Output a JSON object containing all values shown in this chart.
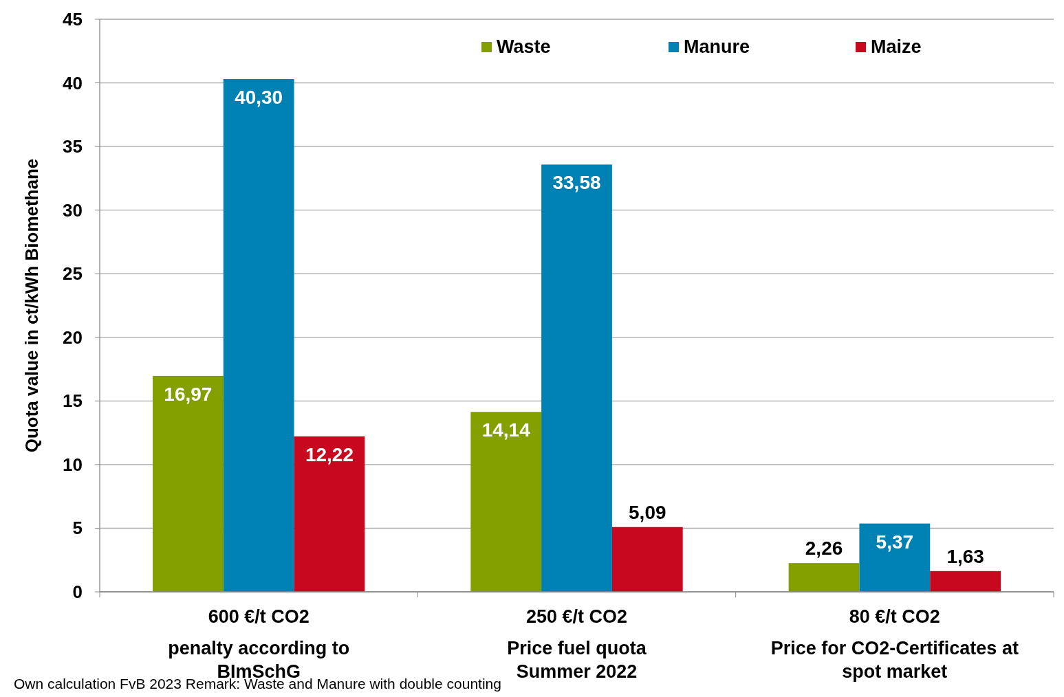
{
  "chart_data": {
    "type": "bar",
    "ylabel": "Quota value in ct/kWh Biomethane",
    "categories": [
      "600 €/t CO2\npenalty according to\nBImSchG",
      "250 €/t CO2\nPrice fuel quota\nSummer 2022",
      "80 €/t CO2\nPrice for CO2-Certificates at\nspot market"
    ],
    "series": [
      {
        "name": "Waste",
        "color": "#84a000",
        "values": [
          16.97,
          14.14,
          2.26
        ],
        "value_labels": [
          "16,97",
          "14,14",
          "2,26"
        ]
      },
      {
        "name": "Manure",
        "color": "#0081b4",
        "values": [
          40.3,
          33.58,
          5.37
        ],
        "value_labels": [
          "40,30",
          "33,58",
          "5,37"
        ]
      },
      {
        "name": "Maize",
        "color": "#c8081f",
        "values": [
          12.22,
          5.09,
          1.63
        ],
        "value_labels": [
          "12,22",
          "5,09",
          "1,63"
        ]
      }
    ],
    "ylim": [
      0,
      45
    ],
    "yticks": [
      0,
      5,
      10,
      15,
      20,
      25,
      30,
      35,
      40,
      45
    ],
    "grid": "y",
    "legend": "top right",
    "annotations": [
      "Own calculation FvB 2023 Remark: Waste and Manure with double counting"
    ]
  }
}
